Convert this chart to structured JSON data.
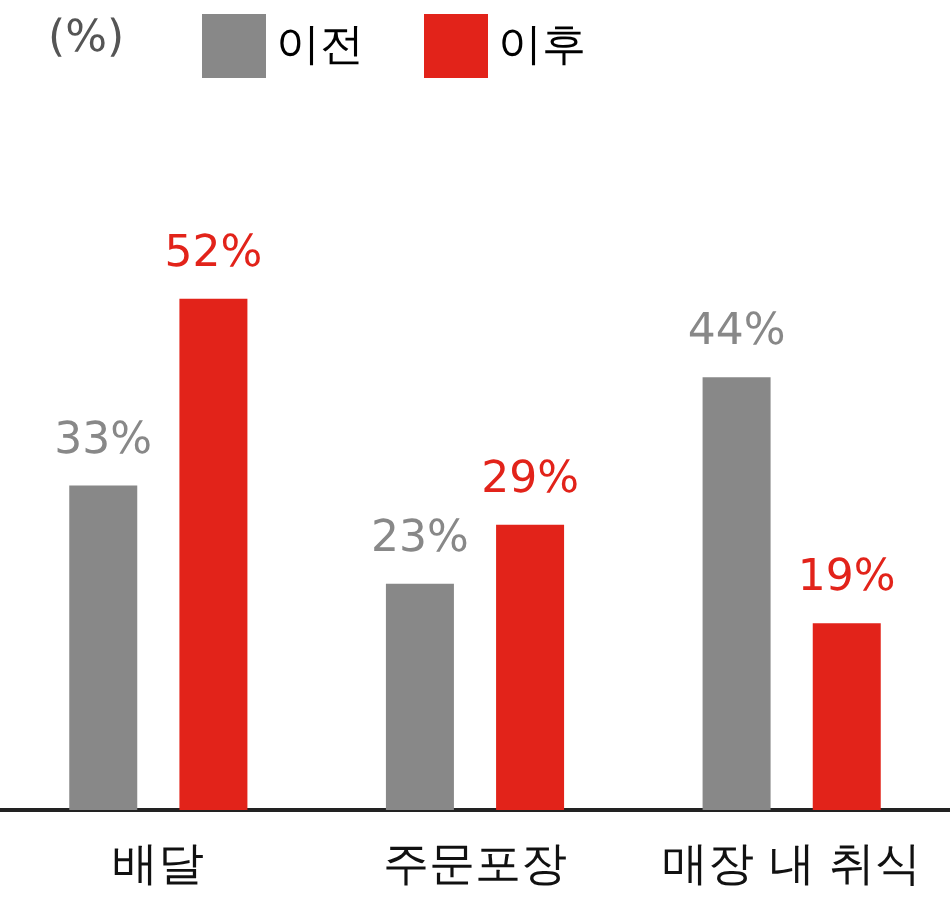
{
  "chart_data": {
    "type": "bar",
    "annotations": [
      "(%)"
    ],
    "categories": [
      "배달",
      "주문포장",
      "매장 내 취식"
    ],
    "legend": "top left",
    "series": [
      {
        "name": "이전",
        "color": "#888888",
        "values": [
          33,
          23,
          44
        ],
        "value_labels": [
          "33%",
          "23%",
          "44%"
        ]
      },
      {
        "name": "이후",
        "color": "#e2231a",
        "values": [
          52,
          29,
          19
        ],
        "value_labels": [
          "52%",
          "29%",
          "19%"
        ]
      }
    ]
  }
}
